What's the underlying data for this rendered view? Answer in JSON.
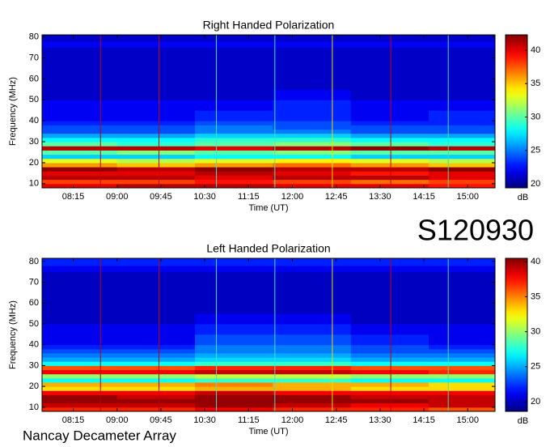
{
  "page": {
    "code": "S120930",
    "footer": "Nancay Decameter Array"
  },
  "chart_data": [
    {
      "type": "heatmap",
      "title": "Right Handed Polarization",
      "x_label": "Time (UT)",
      "y_label": "Frequency (MHz)",
      "xlim": [
        463,
        928
      ],
      "xticks": [
        {
          "value": 495,
          "label": "08:15"
        },
        {
          "value": 540,
          "label": "09:00"
        },
        {
          "value": 585,
          "label": "09:45"
        },
        {
          "value": 630,
          "label": "10:30"
        },
        {
          "value": 675,
          "label": "11:15"
        },
        {
          "value": 720,
          "label": "12:00"
        },
        {
          "value": 765,
          "label": "12:45"
        },
        {
          "value": 810,
          "label": "13:30"
        },
        {
          "value": 855,
          "label": "14:15"
        },
        {
          "value": 900,
          "label": "15:00"
        }
      ],
      "ylim": [
        8,
        81
      ],
      "yticks": [
        10,
        20,
        30,
        40,
        50,
        60,
        70,
        80
      ],
      "x_bins": [
        463,
        540,
        620,
        700,
        780,
        860,
        928
      ],
      "y_bins": [
        8,
        10,
        12,
        14,
        16,
        18,
        20,
        22,
        24,
        26,
        28,
        30,
        32,
        34,
        36,
        38,
        40,
        45,
        50,
        55,
        60,
        65,
        70,
        75,
        78,
        81
      ],
      "z": [
        [
          40,
          41,
          41,
          40,
          40,
          39
        ],
        [
          38,
          38,
          39,
          38,
          37,
          38
        ],
        [
          41,
          41,
          40,
          41,
          41,
          40
        ],
        [
          40,
          40,
          41,
          40,
          39,
          40
        ],
        [
          42,
          41,
          42,
          41,
          41,
          42
        ],
        [
          36,
          35,
          36,
          37,
          36,
          35
        ],
        [
          33,
          32,
          33,
          34,
          33,
          32
        ],
        [
          27,
          27,
          28,
          28,
          27,
          27
        ],
        [
          30,
          31,
          30,
          31,
          30,
          30
        ],
        [
          41,
          41,
          40,
          41,
          42,
          41
        ],
        [
          30,
          29,
          30,
          31,
          30,
          29
        ],
        [
          28,
          28,
          29,
          29,
          28,
          28
        ],
        [
          26,
          26,
          27,
          27,
          26,
          26
        ],
        [
          24,
          24,
          25,
          25,
          24,
          24
        ],
        [
          24,
          24,
          25,
          24,
          24,
          24
        ],
        [
          23,
          23,
          24,
          24,
          23,
          23
        ],
        [
          22,
          22,
          23,
          23,
          22,
          23
        ],
        [
          22,
          22,
          22,
          23,
          22,
          22
        ],
        [
          21,
          21,
          21,
          22,
          21,
          21
        ],
        [
          21,
          21,
          21,
          21,
          21,
          21
        ],
        [
          21,
          21,
          21,
          21,
          21,
          21
        ],
        [
          21,
          21,
          21,
          21,
          21,
          21
        ],
        [
          21,
          21,
          21,
          21,
          21,
          21
        ],
        [
          22,
          22,
          22,
          22,
          22,
          22
        ],
        [
          21,
          21,
          21,
          21,
          21,
          21
        ]
      ],
      "colormap": "jet",
      "clim": [
        19.4,
        42.3
      ],
      "colorbar_ticks": [
        20,
        25,
        30,
        35,
        40
      ],
      "colorbar_label": "dB",
      "markers": [
        {
          "x": 523,
          "color": "#c00000"
        },
        {
          "x": 583,
          "color": "#c00000"
        },
        {
          "x": 642,
          "color": "#40e0d0"
        },
        {
          "x": 702,
          "color": "#40e0d0"
        },
        {
          "x": 761,
          "color": "#e0e000"
        },
        {
          "x": 821,
          "color": "#c00000"
        },
        {
          "x": 880,
          "color": "#40e0a0"
        }
      ]
    },
    {
      "type": "heatmap",
      "title": "Left Handed Polarization",
      "x_label": "Time (UT)",
      "y_label": "Frequency (MHz)",
      "xlim": [
        463,
        928
      ],
      "xticks": [
        {
          "value": 495,
          "label": "08:15"
        },
        {
          "value": 540,
          "label": "09:00"
        },
        {
          "value": 585,
          "label": "09:45"
        },
        {
          "value": 630,
          "label": "10:30"
        },
        {
          "value": 675,
          "label": "11:15"
        },
        {
          "value": 720,
          "label": "12:00"
        },
        {
          "value": 765,
          "label": "12:45"
        },
        {
          "value": 810,
          "label": "13:30"
        },
        {
          "value": 855,
          "label": "14:15"
        },
        {
          "value": 900,
          "label": "15:00"
        }
      ],
      "ylim": [
        8,
        81.5
      ],
      "yticks": [
        10,
        20,
        30,
        40,
        50,
        60,
        70,
        80
      ],
      "x_bins": [
        463,
        540,
        620,
        700,
        780,
        860,
        928
      ],
      "y_bins": [
        8,
        10,
        12,
        14,
        16,
        18,
        20,
        22,
        24,
        26,
        28,
        30,
        32,
        34,
        36,
        38,
        40,
        45,
        50,
        55,
        60,
        65,
        70,
        75,
        78,
        81.5
      ],
      "z": [
        [
          37,
          37,
          38,
          37,
          37,
          36
        ],
        [
          39,
          39,
          40,
          39,
          38,
          39
        ],
        [
          40,
          40,
          40,
          40,
          40,
          39
        ],
        [
          40,
          39,
          40,
          40,
          39,
          39
        ],
        [
          38,
          38,
          39,
          38,
          38,
          38
        ],
        [
          33,
          33,
          34,
          34,
          33,
          33
        ],
        [
          34,
          34,
          35,
          34,
          34,
          33
        ],
        [
          27,
          27,
          28,
          28,
          27,
          27
        ],
        [
          30,
          30,
          31,
          31,
          30,
          30
        ],
        [
          38,
          38,
          39,
          39,
          38,
          37
        ],
        [
          36,
          36,
          37,
          37,
          36,
          36
        ],
        [
          27,
          27,
          28,
          28,
          27,
          27
        ],
        [
          25,
          25,
          26,
          26,
          25,
          25
        ],
        [
          24,
          24,
          25,
          25,
          24,
          24
        ],
        [
          23,
          23,
          24,
          24,
          23,
          23
        ],
        [
          22,
          22,
          24,
          24,
          23,
          22
        ],
        [
          21,
          21,
          23,
          23,
          22,
          21
        ],
        [
          21,
          21,
          22,
          22,
          21,
          21
        ],
        [
          20,
          20,
          21,
          21,
          20,
          20
        ],
        [
          20,
          20,
          20,
          20,
          20,
          20
        ],
        [
          20,
          20,
          20,
          20,
          20,
          20
        ],
        [
          20,
          20,
          20,
          20,
          20,
          20
        ],
        [
          20,
          20,
          20,
          20,
          20,
          20
        ],
        [
          21,
          21,
          21,
          21,
          21,
          21
        ],
        [
          22,
          22,
          22,
          22,
          22,
          22
        ]
      ],
      "colormap": "jet",
      "clim": [
        18.6,
        40.5
      ],
      "colorbar_ticks": [
        20,
        25,
        30,
        35,
        40
      ],
      "colorbar_label": "dB",
      "markers": [
        {
          "x": 523,
          "color": "#c00000"
        },
        {
          "x": 583,
          "color": "#c00000"
        },
        {
          "x": 642,
          "color": "#40e0d0"
        },
        {
          "x": 702,
          "color": "#40e0d0"
        },
        {
          "x": 761,
          "color": "#e0e000"
        },
        {
          "x": 821,
          "color": "#c00000"
        },
        {
          "x": 880,
          "color": "#40e0a0"
        }
      ]
    }
  ]
}
